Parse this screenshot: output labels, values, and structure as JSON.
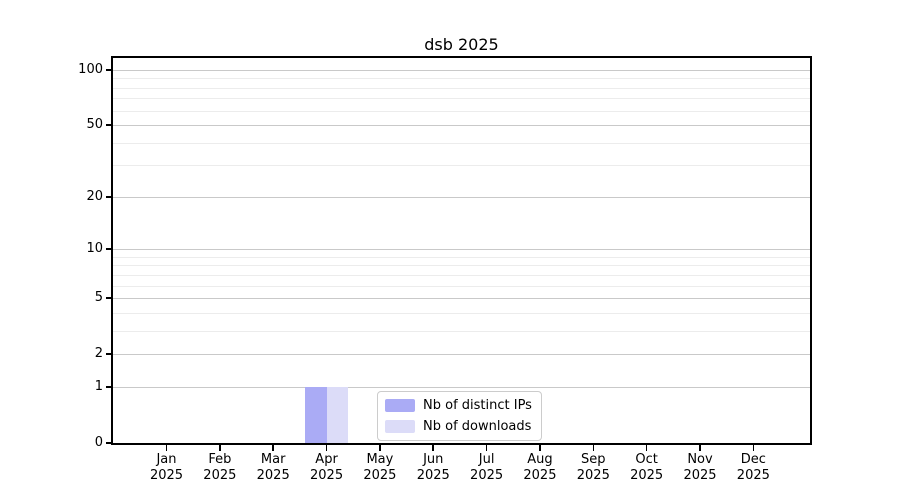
{
  "chart_data": {
    "type": "bar",
    "title": "dsb 2025",
    "categories": [
      "Jan",
      "Feb",
      "Mar",
      "Apr",
      "May",
      "Jun",
      "Jul",
      "Aug",
      "Sep",
      "Oct",
      "Nov",
      "Dec"
    ],
    "x_tick_year": "2025",
    "series": [
      {
        "name": "Nb of distinct IPs",
        "color": "#aaabf5",
        "values": [
          0,
          0,
          0,
          1,
          0,
          0,
          0,
          0,
          0,
          0,
          0,
          0
        ]
      },
      {
        "name": "Nb of downloads",
        "color": "#dcdcf8",
        "values": [
          0,
          0,
          0,
          1,
          0,
          0,
          0,
          0,
          0,
          0,
          0,
          0
        ]
      }
    ],
    "y_scale": "log1p",
    "y_ticks": [
      0,
      1,
      2,
      5,
      10,
      20,
      50,
      100
    ],
    "y_minor_ticks": [
      3,
      4,
      6,
      7,
      8,
      9,
      30,
      40,
      60,
      70,
      80,
      90
    ],
    "ylim": [
      0,
      116
    ],
    "xlabel": "",
    "ylabel": "",
    "grid": true,
    "grid_major_color": "#c9c9c9",
    "grid_minor_color": "#ececec",
    "axis_color": "#000000",
    "legend_position": "lower center"
  }
}
